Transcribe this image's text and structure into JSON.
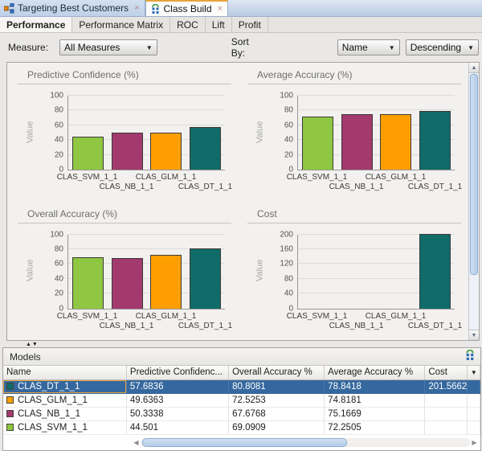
{
  "tab_bar": {
    "tabs": [
      {
        "label": "Targeting Best Customers",
        "icon": "workflow-icon",
        "active": false
      },
      {
        "label": "Class Build",
        "icon": "class-build-icon",
        "active": true
      }
    ],
    "close_glyph": "×"
  },
  "subtabs": {
    "items": [
      "Performance",
      "Performance Matrix",
      "ROC",
      "Lift",
      "Profit"
    ],
    "active": "Performance"
  },
  "filters": {
    "measure_label": "Measure:",
    "measure_value": "All Measures",
    "sort_label": "Sort By:",
    "sort_value": "Name",
    "order_value": "Descending"
  },
  "chart_data": [
    {
      "type": "bar",
      "title": "Predictive Confidence (%)",
      "ylabel": "Value",
      "ylim": [
        0,
        100
      ],
      "yticks": [
        0,
        20,
        40,
        60,
        80,
        100
      ],
      "categories": [
        "CLAS_SVM_1_1",
        "CLAS_NB_1_1",
        "CLAS_GLM_1_1",
        "CLAS_DT_1_1"
      ],
      "values": [
        44.501,
        50.3338,
        49.6363,
        57.6836
      ],
      "colors": [
        "#8fc742",
        "#a23a6e",
        "#ff9e00",
        "#0f6c69"
      ],
      "grid": true,
      "legend": "none"
    },
    {
      "type": "bar",
      "title": "Average Accuracy (%)",
      "ylabel": "Value",
      "ylim": [
        0,
        100
      ],
      "yticks": [
        0,
        20,
        40,
        60,
        80,
        100
      ],
      "categories": [
        "CLAS_SVM_1_1",
        "CLAS_NB_1_1",
        "CLAS_GLM_1_1",
        "CLAS_DT_1_1"
      ],
      "values": [
        72.2505,
        75.1669,
        74.8181,
        78.8418
      ],
      "colors": [
        "#8fc742",
        "#a23a6e",
        "#ff9e00",
        "#0f6c69"
      ],
      "grid": true,
      "legend": "none"
    },
    {
      "type": "bar",
      "title": "Overall Accuracy (%)",
      "ylabel": "Value",
      "ylim": [
        0,
        100
      ],
      "yticks": [
        0,
        20,
        40,
        60,
        80,
        100
      ],
      "categories": [
        "CLAS_SVM_1_1",
        "CLAS_NB_1_1",
        "CLAS_GLM_1_1",
        "CLAS_DT_1_1"
      ],
      "values": [
        69.0909,
        67.6768,
        72.5253,
        80.8081
      ],
      "colors": [
        "#8fc742",
        "#a23a6e",
        "#ff9e00",
        "#0f6c69"
      ],
      "grid": true,
      "legend": "none"
    },
    {
      "type": "bar",
      "title": "Cost",
      "ylabel": "Value",
      "ylim": [
        0,
        200
      ],
      "yticks": [
        0,
        40,
        80,
        120,
        160,
        200
      ],
      "categories": [
        "CLAS_SVM_1_1",
        "CLAS_NB_1_1",
        "CLAS_GLM_1_1",
        "CLAS_DT_1_1"
      ],
      "values": [
        null,
        null,
        null,
        201.5662
      ],
      "colors": [
        "#8fc742",
        "#a23a6e",
        "#ff9e00",
        "#0f6c69"
      ],
      "grid": true,
      "legend": "none"
    }
  ],
  "models_panel": {
    "title": "Models",
    "columns": [
      "Name",
      "Predictive Confidenc...",
      "Overall Accuracy %",
      "Average Accuracy %",
      "Cost"
    ],
    "rows": [
      {
        "name": "CLAS_DT_1_1",
        "color": "#0f6c69",
        "predictive_confidence": "57.6836",
        "overall_accuracy": "80.8081",
        "average_accuracy": "78.8418",
        "cost": "201.5662",
        "selected": true
      },
      {
        "name": "CLAS_GLM_1_1",
        "color": "#ff9e00",
        "predictive_confidence": "49.6363",
        "overall_accuracy": "72.5253",
        "average_accuracy": "74.8181",
        "cost": "",
        "selected": false
      },
      {
        "name": "CLAS_NB_1_1",
        "color": "#a23a6e",
        "predictive_confidence": "50.3338",
        "overall_accuracy": "67.6768",
        "average_accuracy": "75.1669",
        "cost": "",
        "selected": false
      },
      {
        "name": "CLAS_SVM_1_1",
        "color": "#8fc742",
        "predictive_confidence": "44.501",
        "overall_accuracy": "69.0909",
        "average_accuracy": "72.2505",
        "cost": "",
        "selected": false
      }
    ]
  }
}
